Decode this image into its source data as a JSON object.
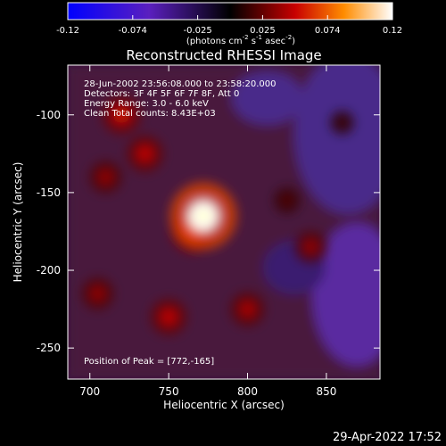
{
  "chart_data": {
    "type": "heatmap",
    "title": "Reconstructed RHESSI Image",
    "xlabel": "Heliocentric X (arcsec)",
    "ylabel": "Heliocentric Y (arcsec)",
    "xlim": [
      686,
      884
    ],
    "ylim": [
      -270,
      -68
    ],
    "x_ticks": [
      "700",
      "750",
      "800",
      "850"
    ],
    "y_ticks": [
      "-100",
      "-150",
      "-200",
      "-250"
    ],
    "colorbar": {
      "range": [
        -0.12,
        0.12
      ],
      "ticks": [
        "-0.12",
        "-0.074",
        "-0.025",
        "0.025",
        "0.074",
        "0.12"
      ],
      "unit_label": "(photons cm",
      "unit_exp1": "-2",
      "unit_mid": " s",
      "unit_exp2": "-1",
      "unit_tail": " asec",
      "unit_exp3": "-2",
      "unit_close": ")"
    },
    "annotations": [
      "28-Jun-2002 23:56:08.000 to 23:58:20.000",
      "Detectors: 3F 4F 5F 6F 7F 8F, Att 0",
      "Energy Range: 3.0 - 6.0 keV",
      "Clean      Total counts: 8.43E+03"
    ],
    "peak_label": "Position of Peak = [772,-165]",
    "peak": {
      "x": 772,
      "y": -165,
      "value": 0.12
    },
    "emission_regions": [
      {
        "x": 772,
        "y": -165,
        "value": 0.12
      },
      {
        "x": 765,
        "y": -175,
        "value": 0.06
      },
      {
        "x": 720,
        "y": -100,
        "value": 0.05
      },
      {
        "x": 735,
        "y": -125,
        "value": 0.045
      },
      {
        "x": 710,
        "y": -140,
        "value": 0.035
      },
      {
        "x": 750,
        "y": -230,
        "value": 0.045
      },
      {
        "x": 705,
        "y": -215,
        "value": 0.035
      },
      {
        "x": 800,
        "y": -225,
        "value": 0.04
      },
      {
        "x": 840,
        "y": -185,
        "value": 0.035
      },
      {
        "x": 825,
        "y": -155,
        "value": 0.02
      },
      {
        "x": 860,
        "y": -105,
        "value": 0.015
      }
    ],
    "grid": false,
    "timestamp": "29-Apr-2022 17:52"
  }
}
